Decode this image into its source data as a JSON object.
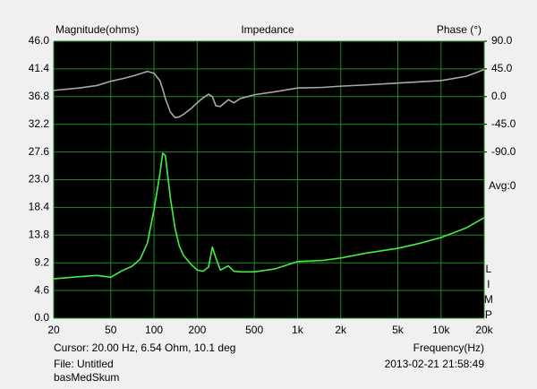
{
  "chart_data": {
    "type": "line",
    "title": "Impedance",
    "y_label": "Magnitude(ohms)",
    "y2_label": "Phase (°)",
    "x_label": "Frequency(Hz)",
    "avg_label": "Avg:0",
    "side_label": "LIMP",
    "cursor_text": "Cursor: 20.00 Hz, 6.54 Ohm, 10.1 deg",
    "file_text": "File: Untitled",
    "name_text": "basMedSkum",
    "timestamp": "2013-02-21 21:58:49",
    "x_log": true,
    "grid": true,
    "background": "#000000",
    "grid_color": "#1f8a1f",
    "xlim": [
      20,
      20000
    ],
    "xticks": [
      20,
      50,
      100,
      200,
      500,
      {
        "value": 1000,
        "label": "1k"
      },
      {
        "value": 2000,
        "label": "2k"
      },
      {
        "value": 5000,
        "label": "5k"
      },
      {
        "value": 10000,
        "label": "10k"
      },
      {
        "value": 20000,
        "label": "20k"
      }
    ],
    "ylim": [
      0,
      46
    ],
    "yticks": [
      {
        "value": 0,
        "label": "0.0"
      },
      4.6,
      9.2,
      13.8,
      18.4,
      {
        "value": 23,
        "label": "23.0"
      },
      27.6,
      32.2,
      36.8,
      41.4,
      {
        "value": 46,
        "label": "46.0"
      }
    ],
    "y2lim": [
      -360,
      90
    ],
    "y2ticks": [
      {
        "value": 90,
        "label": "90.0"
      },
      {
        "value": 45,
        "label": "45.0"
      },
      {
        "value": 0,
        "label": "0.0"
      },
      {
        "value": -45,
        "label": "-45.0"
      },
      {
        "value": -90,
        "label": "-90.0"
      }
    ],
    "x": [
      20,
      30,
      40,
      50,
      60,
      70,
      80,
      90,
      100,
      110,
      115,
      120,
      130,
      140,
      150,
      160,
      180,
      200,
      220,
      240,
      255,
      270,
      290,
      330,
      360,
      400,
      500,
      700,
      1000,
      1500,
      2000,
      3000,
      5000,
      7000,
      10000,
      15000,
      20000
    ],
    "series": [
      {
        "color": "#44ee44",
        "axis": "y",
        "values": [
          6.54,
          6.9,
          7.1,
          6.8,
          7.9,
          8.6,
          9.8,
          12.5,
          18,
          24,
          27.4,
          27,
          20,
          15,
          12,
          10.5,
          9,
          8,
          7.8,
          8.5,
          11.8,
          10,
          8,
          8.7,
          7.8,
          7.7,
          7.7,
          8.2,
          9.4,
          9.6,
          10.0,
          10.8,
          11.6,
          12.4,
          13.4,
          15,
          16.7
        ]
      },
      {
        "color": "#a8a8a8",
        "axis": "y2",
        "values": [
          10.1,
          14,
          18,
          25,
          29,
          33,
          37,
          41,
          38,
          26,
          12,
          -3,
          -25,
          -34,
          -33,
          -29,
          -20,
          -10,
          -2,
          4,
          0,
          -15,
          -16,
          -5,
          -10,
          -3,
          3,
          8,
          14,
          15,
          17,
          19,
          22,
          24,
          26,
          33,
          44
        ]
      }
    ]
  }
}
